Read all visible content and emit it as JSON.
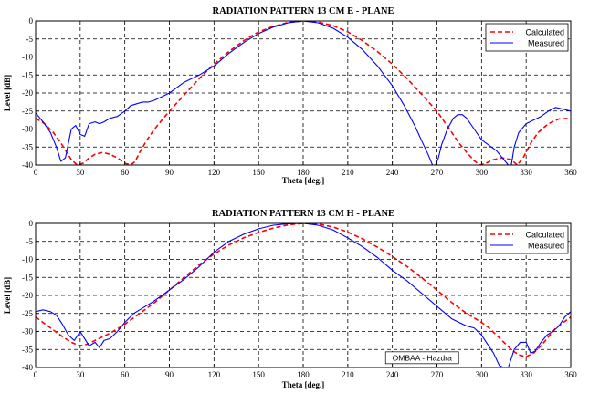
{
  "colors": {
    "calculated": "#ff0000",
    "measured": "#0000ff",
    "grid": "#000000",
    "axes": "#000000"
  },
  "chart_data": [
    {
      "type": "line",
      "title": "RADIATION PATTERN 13 CM E - PLANE",
      "xlabel": "Theta [deg.]",
      "ylabel": "Level [dB]",
      "xlim": [
        0,
        360
      ],
      "ylim": [
        -40,
        0
      ],
      "xticks": [
        0,
        30,
        60,
        90,
        120,
        150,
        180,
        210,
        240,
        270,
        300,
        330,
        360
      ],
      "yticks": [
        0,
        -5,
        -10,
        -15,
        -20,
        -25,
        -30,
        -35,
        -40
      ],
      "grid": true,
      "legend_position": "top-right",
      "series": [
        {
          "name": "Calculated",
          "color": "#ff0000",
          "style": "dashed",
          "x": [
            0,
            6,
            12,
            18,
            24,
            28,
            32,
            36,
            40,
            45,
            50,
            55,
            60,
            64,
            67,
            70,
            75,
            80,
            90,
            100,
            110,
            120,
            130,
            140,
            150,
            160,
            170,
            180,
            190,
            200,
            210,
            220,
            230,
            240,
            250,
            260,
            270,
            275,
            280,
            285,
            290,
            295,
            299,
            303,
            308,
            314,
            320,
            324,
            328,
            333,
            338,
            345,
            352,
            360
          ],
          "y": [
            -27,
            -28.5,
            -31,
            -34.5,
            -38.5,
            -40,
            -39.5,
            -38,
            -37,
            -36.5,
            -37,
            -38,
            -39.5,
            -40,
            -39,
            -36.5,
            -33,
            -30,
            -25,
            -20.5,
            -16,
            -12,
            -8.5,
            -5.5,
            -3,
            -1.5,
            -0.4,
            0,
            -0.3,
            -1.3,
            -3,
            -5.5,
            -8.5,
            -12,
            -16,
            -20.5,
            -25,
            -28,
            -31,
            -34,
            -36.5,
            -38.8,
            -40,
            -39.5,
            -38.5,
            -38,
            -38.5,
            -40,
            -38,
            -34,
            -31,
            -28.5,
            -27.2,
            -27
          ]
        },
        {
          "name": "Measured",
          "color": "#0000ff",
          "style": "solid",
          "x": [
            0,
            5,
            10,
            14,
            17,
            20,
            24,
            27,
            30,
            33,
            36,
            40,
            43,
            46,
            50,
            55,
            60,
            64,
            68,
            72,
            76,
            80,
            85,
            90,
            95,
            100,
            110,
            120,
            130,
            140,
            150,
            160,
            170,
            180,
            190,
            200,
            210,
            220,
            230,
            240,
            248,
            255,
            260,
            264,
            267,
            269,
            271,
            273,
            277,
            281,
            284,
            287,
            290,
            295,
            300,
            305,
            310,
            315,
            318,
            320,
            322,
            325,
            330,
            335,
            340,
            345,
            350,
            355,
            360
          ],
          "y": [
            -25.5,
            -28,
            -31,
            -35,
            -39,
            -38,
            -30,
            -29,
            -31.5,
            -32,
            -28.5,
            -28,
            -28.5,
            -28,
            -27,
            -26.5,
            -25,
            -23.5,
            -23,
            -22.5,
            -22.5,
            -22,
            -21,
            -20,
            -18.5,
            -17,
            -15,
            -12.5,
            -9,
            -6,
            -3.5,
            -1.7,
            -0.5,
            0,
            -0.5,
            -2,
            -4.5,
            -8,
            -12.5,
            -18,
            -23.5,
            -29,
            -33.5,
            -37,
            -40,
            -40,
            -38,
            -34.5,
            -30,
            -27,
            -26,
            -26,
            -27,
            -30,
            -33,
            -34.5,
            -36,
            -38.5,
            -40,
            -40,
            -35,
            -31,
            -28.5,
            -27.5,
            -26.5,
            -25,
            -24,
            -24.5,
            -25
          ]
        }
      ],
      "annotations": []
    },
    {
      "type": "line",
      "title": "RADIATION PATTERN 13 CM H - PLANE",
      "xlabel": "Theta [deg.]",
      "ylabel": "Level [dB]",
      "xlim": [
        0,
        360
      ],
      "ylim": [
        -40,
        0
      ],
      "xticks": [
        0,
        30,
        60,
        90,
        120,
        150,
        180,
        210,
        240,
        270,
        300,
        330,
        360
      ],
      "yticks": [
        0,
        -5,
        -10,
        -15,
        -20,
        -25,
        -30,
        -35,
        -40
      ],
      "grid": true,
      "legend_position": "top-right",
      "series": [
        {
          "name": "Calculated",
          "color": "#ff0000",
          "style": "dashed",
          "x": [
            0,
            5,
            10,
            15,
            20,
            25,
            30,
            35,
            40,
            45,
            50,
            60,
            70,
            80,
            90,
            100,
            110,
            120,
            130,
            140,
            150,
            160,
            170,
            180,
            190,
            200,
            210,
            220,
            230,
            240,
            250,
            260,
            270,
            280,
            290,
            300,
            305,
            310,
            315,
            320,
            325,
            330,
            335,
            340,
            345,
            350,
            355,
            360
          ],
          "y": [
            -26,
            -27.5,
            -29,
            -30.5,
            -32,
            -33.2,
            -34,
            -33.5,
            -32.5,
            -31.5,
            -30.5,
            -28,
            -25,
            -22,
            -18.5,
            -15,
            -11.5,
            -8.5,
            -6,
            -4,
            -2.5,
            -1.3,
            -0.4,
            0,
            -0.2,
            -1,
            -2.4,
            -4.3,
            -6.6,
            -9.2,
            -12,
            -15.2,
            -18.5,
            -22,
            -25,
            -27.5,
            -29,
            -31,
            -33,
            -35,
            -36.5,
            -37,
            -36,
            -34,
            -31.5,
            -29,
            -27.5,
            -26
          ]
        },
        {
          "name": "Measured",
          "color": "#0000ff",
          "style": "solid",
          "x": [
            0,
            5,
            10,
            14,
            18,
            22,
            26,
            30,
            33,
            36,
            40,
            43,
            46,
            50,
            55,
            60,
            66,
            72,
            78,
            85,
            90,
            100,
            110,
            120,
            130,
            140,
            150,
            160,
            170,
            180,
            190,
            200,
            210,
            220,
            230,
            240,
            250,
            260,
            270,
            280,
            290,
            295,
            300,
            304,
            308,
            312,
            315,
            318,
            322,
            326,
            330,
            333,
            336,
            340,
            344,
            348,
            352,
            356,
            360
          ],
          "y": [
            -24.5,
            -24,
            -24.5,
            -25.5,
            -28,
            -31,
            -32.5,
            -30,
            -32,
            -34,
            -33,
            -34.5,
            -32.5,
            -32,
            -30,
            -27.5,
            -25,
            -23.5,
            -22,
            -20,
            -18.5,
            -15.5,
            -12,
            -8,
            -5,
            -3,
            -1.5,
            -0.5,
            -0.1,
            0,
            -0.5,
            -1.8,
            -4,
            -6.5,
            -9.5,
            -13,
            -16,
            -19.5,
            -23,
            -26.5,
            -28.5,
            -29,
            -31,
            -33.5,
            -36,
            -39.5,
            -40,
            -40,
            -35,
            -33,
            -33,
            -36,
            -35.5,
            -33,
            -31,
            -30,
            -28.5,
            -26,
            -24.5
          ]
        }
      ],
      "annotations": [
        "OMBAA - Hazdra"
      ]
    }
  ]
}
